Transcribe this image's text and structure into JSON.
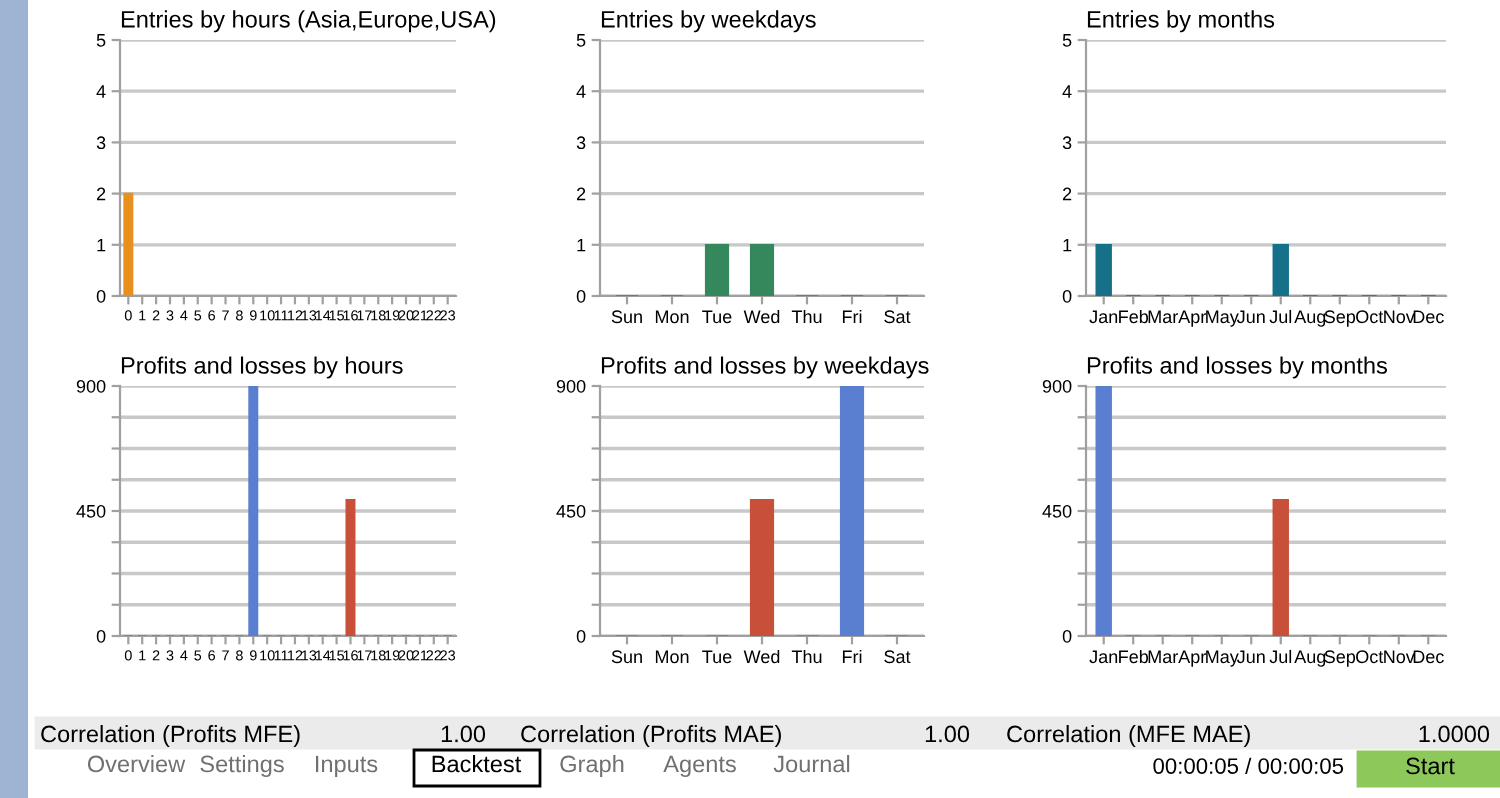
{
  "chart_data": [
    {
      "type": "bar",
      "title": "Entries by hours (Asia,Europe,USA)",
      "categories": [
        "0",
        "1",
        "2",
        "3",
        "4",
        "5",
        "6",
        "7",
        "8",
        "9",
        "10",
        "11",
        "12",
        "13",
        "14",
        "15",
        "16",
        "17",
        "18",
        "19",
        "20",
        "21",
        "22",
        "23"
      ],
      "values": [
        2,
        0,
        0,
        0,
        0,
        0,
        0,
        0,
        0,
        0,
        0,
        0,
        0,
        0,
        0,
        0,
        0,
        0,
        0,
        0,
        0,
        0,
        0,
        0
      ],
      "color": "#e8901e",
      "ylim": [
        0,
        5
      ],
      "yticks": [
        0,
        1,
        2,
        3,
        4,
        5
      ],
      "grid": "y"
    },
    {
      "type": "bar",
      "title": "Entries by weekdays",
      "categories": [
        "Sun",
        "Mon",
        "Tue",
        "Wed",
        "Thu",
        "Fri",
        "Sat"
      ],
      "values": [
        0,
        0,
        1,
        1,
        0,
        0,
        0
      ],
      "color": "#35885c",
      "ylim": [
        0,
        5
      ],
      "yticks": [
        0,
        1,
        2,
        3,
        4,
        5
      ],
      "grid": "y"
    },
    {
      "type": "bar",
      "title": "Entries by months",
      "categories": [
        "Jan",
        "Feb",
        "Mar",
        "Apr",
        "May",
        "Jun",
        "Jul",
        "Aug",
        "Sep",
        "Oct",
        "Nov",
        "Dec"
      ],
      "values": [
        1,
        0,
        0,
        0,
        0,
        0,
        1,
        0,
        0,
        0,
        0,
        0
      ],
      "color": "#16708a",
      "ylim": [
        0,
        5
      ],
      "yticks": [
        0,
        1,
        2,
        3,
        4,
        5
      ],
      "grid": "y"
    },
    {
      "type": "bar",
      "title": "Profits and losses by hours",
      "categories": [
        "0",
        "1",
        "2",
        "3",
        "4",
        "5",
        "6",
        "7",
        "8",
        "9",
        "10",
        "11",
        "12",
        "13",
        "14",
        "15",
        "16",
        "17",
        "18",
        "19",
        "20",
        "21",
        "22",
        "23"
      ],
      "values": [
        0,
        0,
        0,
        0,
        0,
        0,
        0,
        0,
        0,
        900,
        0,
        0,
        0,
        0,
        0,
        0,
        490,
        0,
        0,
        0,
        0,
        0,
        0,
        0
      ],
      "colors": [
        "#5a7ed0",
        "#5a7ed0",
        "#5a7ed0",
        "#5a7ed0",
        "#5a7ed0",
        "#5a7ed0",
        "#5a7ed0",
        "#5a7ed0",
        "#5a7ed0",
        "#5a7ed0",
        "#5a7ed0",
        "#5a7ed0",
        "#5a7ed0",
        "#5a7ed0",
        "#5a7ed0",
        "#5a7ed0",
        "#c8503a",
        "#5a7ed0",
        "#5a7ed0",
        "#5a7ed0",
        "#5a7ed0",
        "#5a7ed0",
        "#5a7ed0",
        "#5a7ed0"
      ],
      "ylim": [
        0,
        900
      ],
      "yticks": [
        0,
        {
          "value": 112.5,
          "label": null
        },
        {
          "value": 225,
          "label": null
        },
        {
          "value": 337.5,
          "label": null
        },
        450,
        {
          "value": 562.5,
          "label": null
        },
        {
          "value": 675,
          "label": null
        },
        {
          "value": 787.5,
          "label": null
        },
        900
      ],
      "grid": "y"
    },
    {
      "type": "bar",
      "title": "Profits and losses by weekdays",
      "categories": [
        "Sun",
        "Mon",
        "Tue",
        "Wed",
        "Thu",
        "Fri",
        "Sat"
      ],
      "values": [
        0,
        0,
        0,
        490,
        0,
        900,
        0
      ],
      "colors": [
        "#5a7ed0",
        "#5a7ed0",
        "#5a7ed0",
        "#c8503a",
        "#5a7ed0",
        "#5a7ed0",
        "#5a7ed0"
      ],
      "ylim": [
        0,
        900
      ],
      "yticks": [
        0,
        {
          "value": 112.5,
          "label": null
        },
        {
          "value": 225,
          "label": null
        },
        {
          "value": 337.5,
          "label": null
        },
        450,
        {
          "value": 562.5,
          "label": null
        },
        {
          "value": 675,
          "label": null
        },
        {
          "value": 787.5,
          "label": null
        },
        900
      ],
      "grid": "y"
    },
    {
      "type": "bar",
      "title": "Profits and losses by months",
      "categories": [
        "Jan",
        "Feb",
        "Mar",
        "Apr",
        "May",
        "Jun",
        "Jul",
        "Aug",
        "Sep",
        "Oct",
        "Nov",
        "Dec"
      ],
      "values": [
        900,
        0,
        0,
        0,
        0,
        0,
        490,
        0,
        0,
        0,
        0,
        0
      ],
      "colors": [
        "#5a7ed0",
        "#5a7ed0",
        "#5a7ed0",
        "#5a7ed0",
        "#5a7ed0",
        "#5a7ed0",
        "#c8503a",
        "#5a7ed0",
        "#5a7ed0",
        "#5a7ed0",
        "#5a7ed0",
        "#5a7ed0"
      ],
      "ylim": [
        0,
        900
      ],
      "yticks": [
        0,
        {
          "value": 112.5,
          "label": null
        },
        {
          "value": 225,
          "label": null
        },
        {
          "value": 337.5,
          "label": null
        },
        450,
        {
          "value": 562.5,
          "label": null
        },
        {
          "value": 675,
          "label": null
        },
        {
          "value": 787.5,
          "label": null
        },
        900
      ],
      "grid": "y"
    },
    {
      "type": "other",
      "annotations": [
        "Correlation (Profits MFE)",
        "1.00",
        "Correlation (Profits MAE)",
        "1.00",
        "Correlation (MFE MAE)",
        "1.0000",
        "Overview",
        "Settings",
        "Inputs",
        "Backtest",
        "Graph",
        "Agents",
        "Journal",
        "00:00:05 / 00:00:05",
        "Start"
      ]
    }
  ]
}
